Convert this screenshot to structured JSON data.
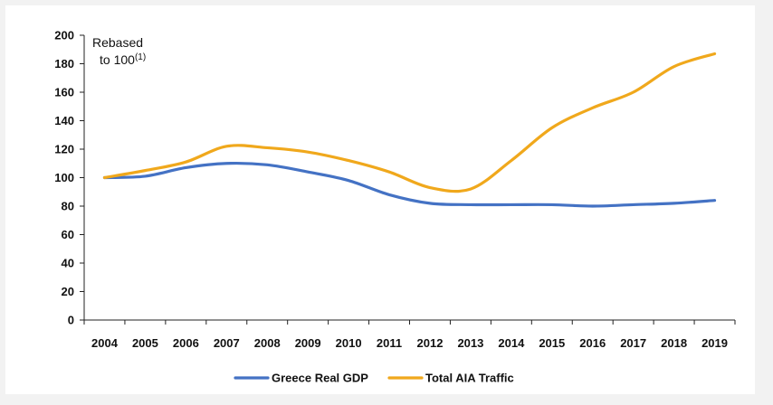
{
  "chart_data": {
    "type": "line",
    "x": [
      "2004",
      "2005",
      "2006",
      "2007",
      "2008",
      "2009",
      "2010",
      "2011",
      "2012",
      "2013",
      "2014",
      "2015",
      "2016",
      "2017",
      "2018",
      "2019"
    ],
    "ylim": [
      0,
      200
    ],
    "yticks": [
      0,
      20,
      40,
      60,
      80,
      100,
      120,
      140,
      160,
      180,
      200
    ],
    "annotation": {
      "line1": "Rebased",
      "line2": "to 100",
      "sup": "(1)"
    },
    "legend_position": "bottom",
    "series": [
      {
        "name": "Greece Real GDP",
        "color": "#4472c4",
        "values": [
          100,
          101,
          107,
          110,
          109,
          104,
          98,
          88,
          82,
          81,
          81,
          81,
          80,
          81,
          82,
          84
        ]
      },
      {
        "name": "Total AIA Traffic",
        "color": "#f0a81c",
        "values": [
          100,
          105,
          111,
          122,
          121,
          118,
          112,
          104,
          93,
          92,
          112,
          135,
          149,
          160,
          178,
          187
        ]
      }
    ]
  }
}
